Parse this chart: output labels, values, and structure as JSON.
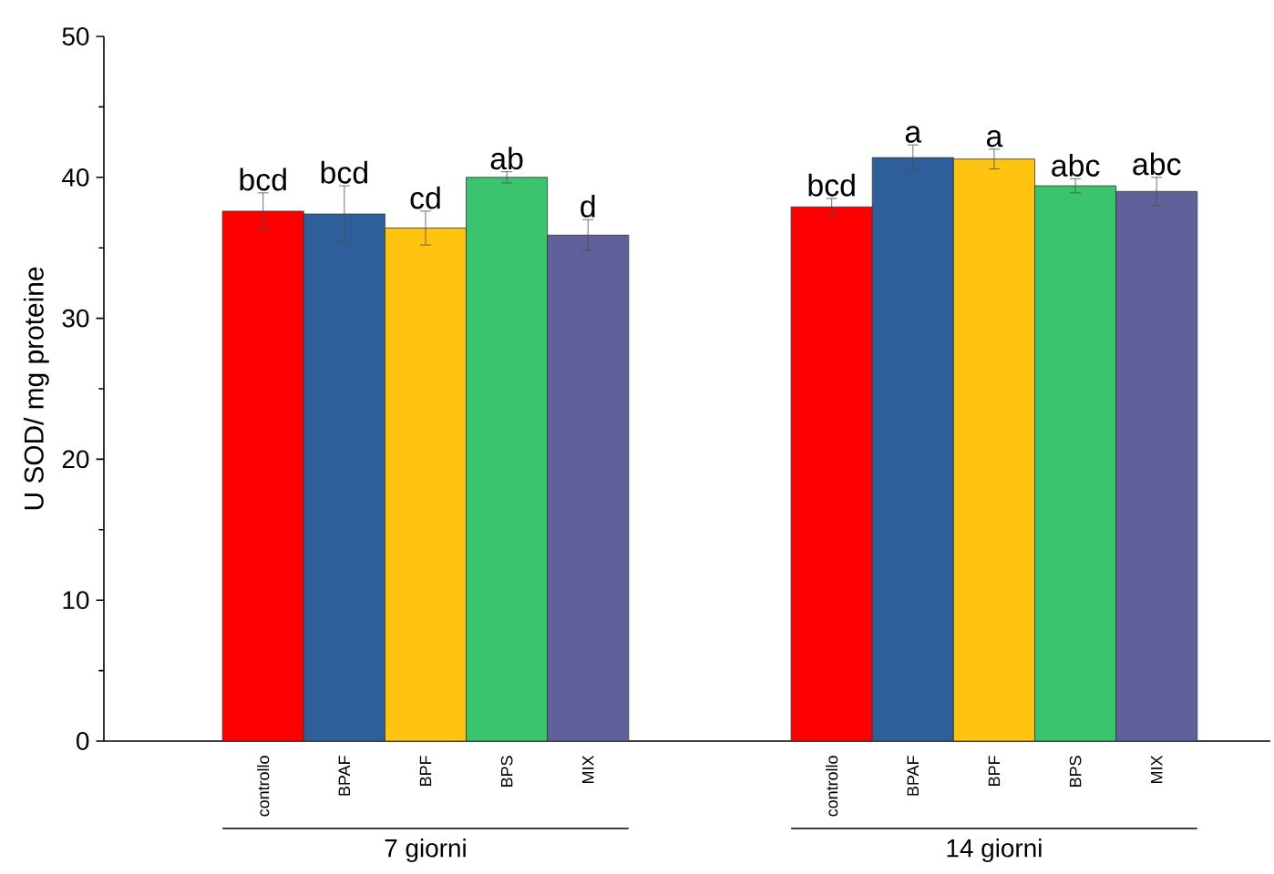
{
  "chart_data": {
    "type": "bar",
    "ylabel": "U SOD/ mg proteine",
    "categories": [
      "controllo",
      "BPAF",
      "BPF",
      "BPS",
      "MIX",
      null,
      null,
      "controllo",
      "BPAF",
      "BPF",
      "BPS",
      "MIX"
    ],
    "values": [
      37.6,
      37.4,
      36.4,
      40.0,
      35.9,
      null,
      null,
      37.9,
      41.4,
      41.3,
      39.4,
      39.0
    ],
    "errors": [
      1.3,
      2.0,
      1.2,
      0.4,
      1.1,
      null,
      null,
      0.6,
      0.9,
      0.7,
      0.5,
      1.0
    ],
    "colors": [
      "#ff0000",
      "#2f5f9a",
      "#ffc40f",
      "#3ac46d",
      "#60609a",
      null,
      null,
      "#ff0000",
      "#2f5f9a",
      "#ffc40f",
      "#3ac46d",
      "#60609a"
    ],
    "value_labels": [
      "bcd",
      "bcd",
      "cd",
      "ab",
      "d",
      null,
      null,
      "bcd",
      "a",
      "a",
      "abc",
      "abc"
    ],
    "annotations": [
      "7 giorni",
      "14 giorni"
    ],
    "ylim": [
      0,
      50
    ],
    "yticks": [
      0,
      10,
      20,
      30,
      40,
      50
    ],
    "grid": false
  }
}
